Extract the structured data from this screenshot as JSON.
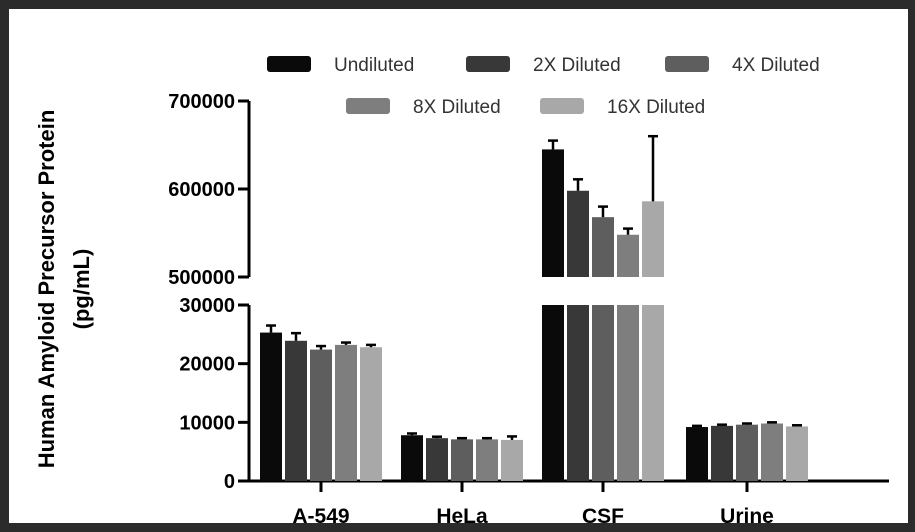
{
  "chart_data": {
    "type": "bar",
    "ylabel_line1": "Human Amyloid Precursor Protein",
    "ylabel_line2": "(pg/mL)",
    "categories": [
      "A-549",
      "HeLa",
      "CSF",
      "Urine"
    ],
    "series": [
      {
        "name": "Undiluted",
        "color": "#0a0a0a",
        "values": [
          25300,
          7800,
          645000,
          9200
        ],
        "errors": [
          1200,
          300,
          10000,
          200
        ]
      },
      {
        "name": "2X Diluted",
        "color": "#383838",
        "values": [
          23900,
          7300,
          598000,
          9400
        ],
        "errors": [
          1300,
          250,
          13000,
          200
        ]
      },
      {
        "name": "4X Diluted",
        "color": "#5e5e5e",
        "values": [
          22400,
          7100,
          568000,
          9600
        ],
        "errors": [
          600,
          200,
          12000,
          200
        ]
      },
      {
        "name": "8X Diluted",
        "color": "#7e7e7e",
        "values": [
          23200,
          7100,
          548000,
          9800
        ],
        "errors": [
          400,
          200,
          7000,
          200
        ]
      },
      {
        "name": "16X Diluted",
        "color": "#a8a8a8",
        "values": [
          22800,
          7000,
          586000,
          9300
        ],
        "errors": [
          400,
          600,
          74000,
          200
        ]
      }
    ],
    "y_segments": [
      {
        "range": [
          0,
          30000
        ],
        "ticks": [
          "0",
          "10000",
          "20000",
          "30000"
        ]
      },
      {
        "range": [
          500000,
          700000
        ],
        "ticks": [
          "500000",
          "600000",
          "700000"
        ]
      }
    ],
    "legend_position": "top",
    "grid": false
  }
}
